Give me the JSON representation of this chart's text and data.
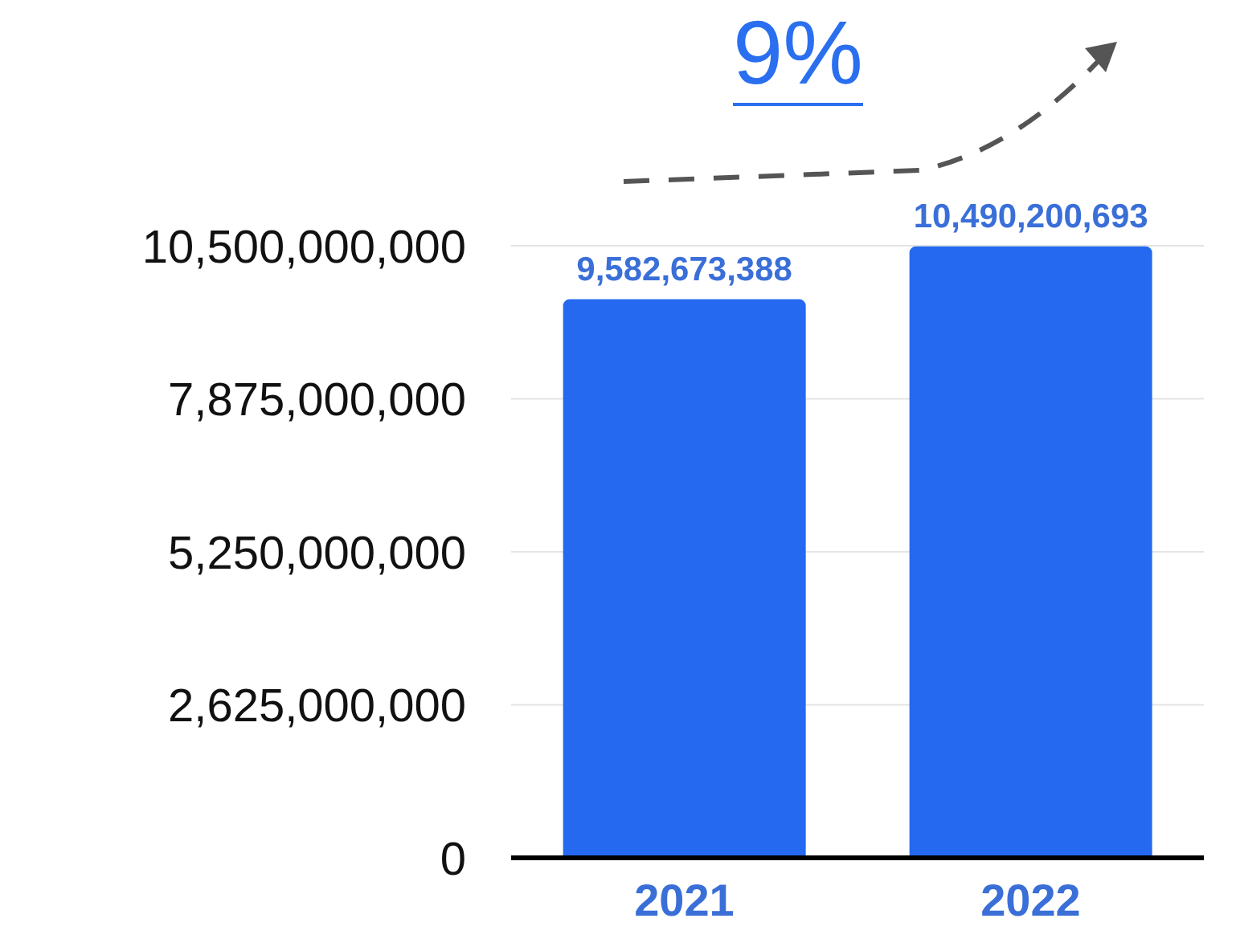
{
  "chart_data": {
    "type": "bar",
    "categories": [
      "2021",
      "2022"
    ],
    "values": [
      9582673388,
      10490200693
    ],
    "value_labels": [
      "9,582,673,388",
      "10,490,200,693"
    ],
    "color": "#2469f0",
    "ylim": [
      0,
      10500000000
    ],
    "yticks": [
      0,
      {
        "value": 2625000000,
        "label": "2,625,000,000"
      },
      {
        "value": 5250000000,
        "label": "5,250,000,000"
      },
      {
        "value": 7875000000,
        "label": "7,875,000,000"
      },
      {
        "value": 10500000000,
        "label": "10,500,000,000"
      }
    ],
    "grid": "y",
    "annotations": [
      "9%"
    ]
  }
}
